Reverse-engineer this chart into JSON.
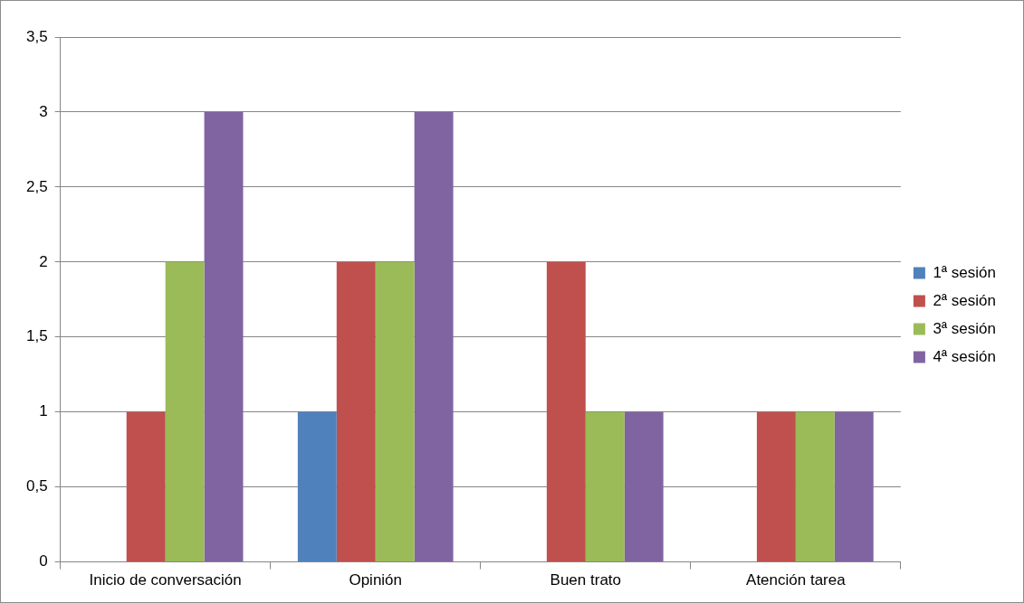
{
  "chart_data": {
    "type": "bar",
    "categories": [
      "Inicio de conversación",
      "Opinión",
      "Buen trato",
      "Atención tarea"
    ],
    "series": [
      {
        "name": "1ª sesión",
        "color": "#4f81bd",
        "values": [
          0,
          1,
          0,
          0
        ]
      },
      {
        "name": "2ª sesión",
        "color": "#c0504d",
        "values": [
          1,
          2,
          2,
          1
        ]
      },
      {
        "name": "3ª sesión",
        "color": "#9bbb59",
        "values": [
          2,
          2,
          1,
          1
        ]
      },
      {
        "name": "4ª sesión",
        "color": "#8064a2",
        "values": [
          3,
          3,
          1,
          1
        ]
      }
    ],
    "ylim": [
      0,
      3.5
    ],
    "yticks": [
      0,
      {
        "value": 0.5,
        "label": "0,5"
      },
      1,
      {
        "value": 1.5,
        "label": "1,5"
      },
      2,
      {
        "value": 2.5,
        "label": "2,5"
      },
      3,
      {
        "value": 3.5,
        "label": "3,5"
      }
    ],
    "grid": "y",
    "legend": "right"
  }
}
